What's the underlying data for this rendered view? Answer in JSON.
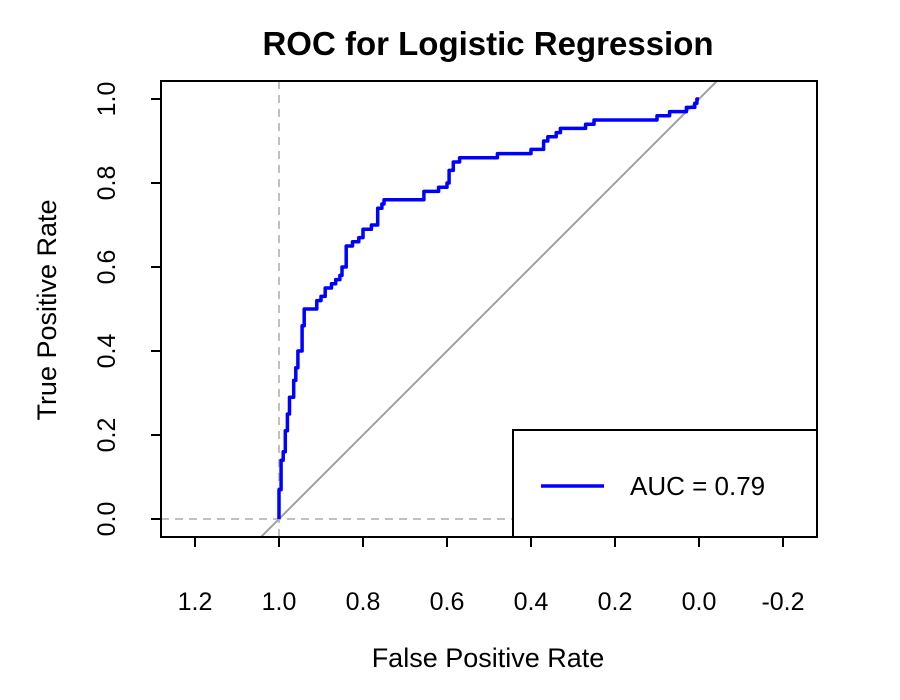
{
  "chart_data": {
    "type": "line",
    "title": "ROC for Logistic Regression",
    "xlabel": "False Positive Rate",
    "ylabel": "True Positive Rate",
    "x_reversed": true,
    "xlim": [
      1.2,
      -0.2
    ],
    "ylim": [
      0.0,
      1.0
    ],
    "x_ticks": [
      1.2,
      1.0,
      0.8,
      0.6,
      0.4,
      0.2,
      0.0,
      -0.2
    ],
    "x_tick_labels": [
      "1.2",
      "1.0",
      "0.8",
      "0.6",
      "0.4",
      "0.2",
      "0.0",
      "-0.2"
    ],
    "y_ticks": [
      0.0,
      0.2,
      0.4,
      0.6,
      0.8,
      1.0
    ],
    "y_tick_labels": [
      "0.0",
      "0.2",
      "0.4",
      "0.6",
      "0.8",
      "1.0"
    ],
    "grid": false,
    "legend": {
      "position": "bottom-right",
      "entries": [
        "AUC = 0.79"
      ]
    },
    "colors": {
      "roc": "#0000ff",
      "diagonal": "#a0a0a0",
      "reference": "#c0c0c0"
    },
    "series": [
      {
        "name": "AUC = 0.79",
        "x": [
          1.0,
          1.0,
          0.995,
          0.995,
          0.99,
          0.99,
          0.985,
          0.985,
          0.98,
          0.98,
          0.975,
          0.975,
          0.965,
          0.965,
          0.96,
          0.96,
          0.955,
          0.955,
          0.945,
          0.945,
          0.94,
          0.94,
          0.935,
          0.935,
          0.91,
          0.91,
          0.9,
          0.9,
          0.89,
          0.89,
          0.875,
          0.875,
          0.865,
          0.865,
          0.855,
          0.855,
          0.85,
          0.85,
          0.84,
          0.84,
          0.825,
          0.825,
          0.81,
          0.81,
          0.8,
          0.8,
          0.78,
          0.78,
          0.765,
          0.765,
          0.755,
          0.755,
          0.75,
          0.75,
          0.74,
          0.74,
          0.655,
          0.655,
          0.62,
          0.62,
          0.6,
          0.6,
          0.595,
          0.595,
          0.585,
          0.585,
          0.57,
          0.57,
          0.55,
          0.55,
          0.48,
          0.48,
          0.4,
          0.4,
          0.37,
          0.37,
          0.36,
          0.36,
          0.34,
          0.34,
          0.33,
          0.33,
          0.27,
          0.27,
          0.25,
          0.25,
          0.24,
          0.24,
          0.1,
          0.1,
          0.07,
          0.07,
          0.03,
          0.03,
          0.01,
          0.01,
          0.005,
          0.005,
          0.0
        ],
        "y": [
          0.0,
          0.07,
          0.07,
          0.14,
          0.14,
          0.16,
          0.16,
          0.21,
          0.21,
          0.25,
          0.25,
          0.29,
          0.29,
          0.33,
          0.33,
          0.36,
          0.36,
          0.4,
          0.4,
          0.46,
          0.46,
          0.5,
          0.5,
          0.5,
          0.5,
          0.52,
          0.52,
          0.53,
          0.53,
          0.55,
          0.55,
          0.56,
          0.56,
          0.57,
          0.57,
          0.58,
          0.58,
          0.6,
          0.6,
          0.65,
          0.65,
          0.66,
          0.66,
          0.67,
          0.67,
          0.69,
          0.69,
          0.7,
          0.7,
          0.74,
          0.74,
          0.75,
          0.75,
          0.76,
          0.76,
          0.76,
          0.76,
          0.78,
          0.78,
          0.79,
          0.79,
          0.8,
          0.8,
          0.83,
          0.83,
          0.85,
          0.85,
          0.86,
          0.86,
          0.86,
          0.86,
          0.87,
          0.87,
          0.88,
          0.88,
          0.9,
          0.9,
          0.91,
          0.91,
          0.92,
          0.92,
          0.93,
          0.93,
          0.94,
          0.94,
          0.95,
          0.95,
          0.95,
          0.95,
          0.96,
          0.96,
          0.97,
          0.97,
          0.98,
          0.98,
          0.99,
          0.99,
          1.0,
          1.0
        ]
      }
    ]
  }
}
